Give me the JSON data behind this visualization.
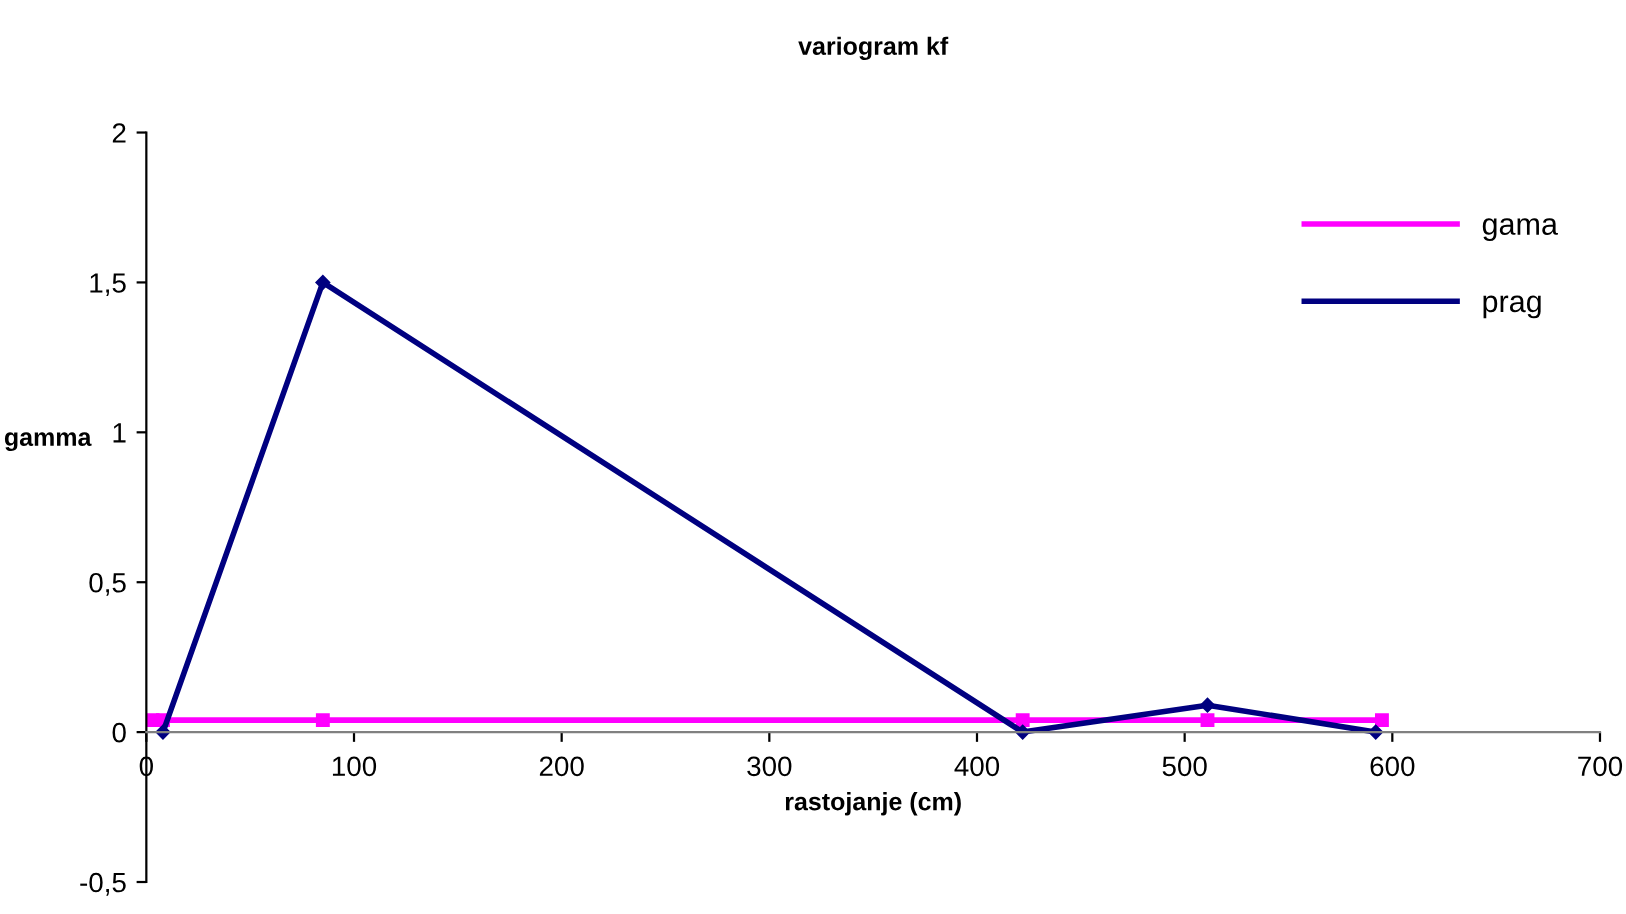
{
  "chart_data": {
    "type": "line",
    "title": "variogram kf",
    "xlabel": "rastojanje (cm)",
    "ylabel": "gamma",
    "xlim": [
      0,
      700
    ],
    "xticks": [
      0,
      100,
      200,
      300,
      400,
      500,
      600,
      700
    ],
    "ylim": [
      -0.5,
      2
    ],
    "yticks": [
      {
        "value": -0.5,
        "label": "-0,5"
      },
      0,
      {
        "value": 0.5,
        "label": "0,5"
      },
      1,
      {
        "value": 1.5,
        "label": "1,5"
      },
      2
    ],
    "series": [
      {
        "name": "gama",
        "color": "#ff00ff",
        "marker": "square",
        "x": [
          3,
          8,
          85,
          422,
          511,
          595
        ],
        "values": [
          0.04,
          0.04,
          0.04,
          0.04,
          0.04,
          0.04
        ]
      },
      {
        "name": "prag",
        "color": "#000080",
        "marker": "diamond",
        "x": [
          8,
          85,
          422,
          511,
          592
        ],
        "values": [
          0,
          1.5,
          0,
          0.09,
          0
        ]
      }
    ],
    "legend": "top right",
    "grid": false
  }
}
